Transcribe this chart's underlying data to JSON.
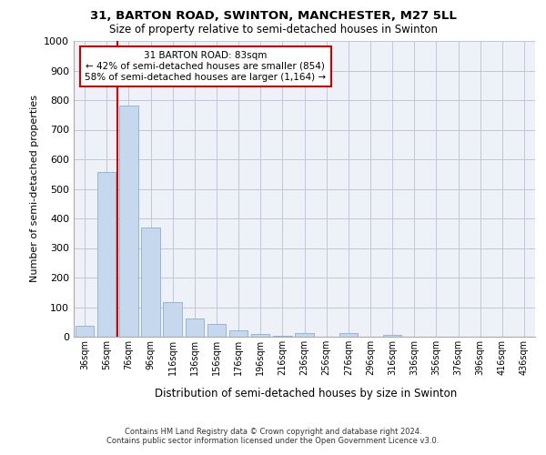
{
  "title1": "31, BARTON ROAD, SWINTON, MANCHESTER, M27 5LL",
  "title2": "Size of property relative to semi-detached houses in Swinton",
  "xlabel": "Distribution of semi-detached houses by size in Swinton",
  "ylabel": "Number of semi-detached properties",
  "property_size": 83,
  "pct_smaller": 42,
  "pct_larger": 58,
  "n_smaller": 854,
  "n_larger": 1164,
  "bin_labels": [
    "36sqm",
    "56sqm",
    "76sqm",
    "96sqm",
    "116sqm",
    "136sqm",
    "156sqm",
    "176sqm",
    "196sqm",
    "216sqm",
    "236sqm",
    "256sqm",
    "276sqm",
    "296sqm",
    "316sqm",
    "336sqm",
    "356sqm",
    "376sqm",
    "396sqm",
    "416sqm",
    "436sqm"
  ],
  "bar_values": [
    38,
    557,
    783,
    368,
    117,
    63,
    42,
    22,
    8,
    3,
    13,
    0,
    12,
    0,
    7,
    0,
    0,
    0,
    0,
    0,
    0
  ],
  "bar_color": "#c5d8ed",
  "bar_edge_color": "#8ab0d0",
  "vline_pos": 1.5,
  "ylim": [
    0,
    1000
  ],
  "yticks": [
    0,
    100,
    200,
    300,
    400,
    500,
    600,
    700,
    800,
    900,
    1000
  ],
  "grid_color": "#c0c8d8",
  "bg_color": "#eef2f8",
  "annotation_border_color": "#cc0000",
  "footer_line1": "Contains HM Land Registry data © Crown copyright and database right 2024.",
  "footer_line2": "Contains public sector information licensed under the Open Government Licence v3.0."
}
